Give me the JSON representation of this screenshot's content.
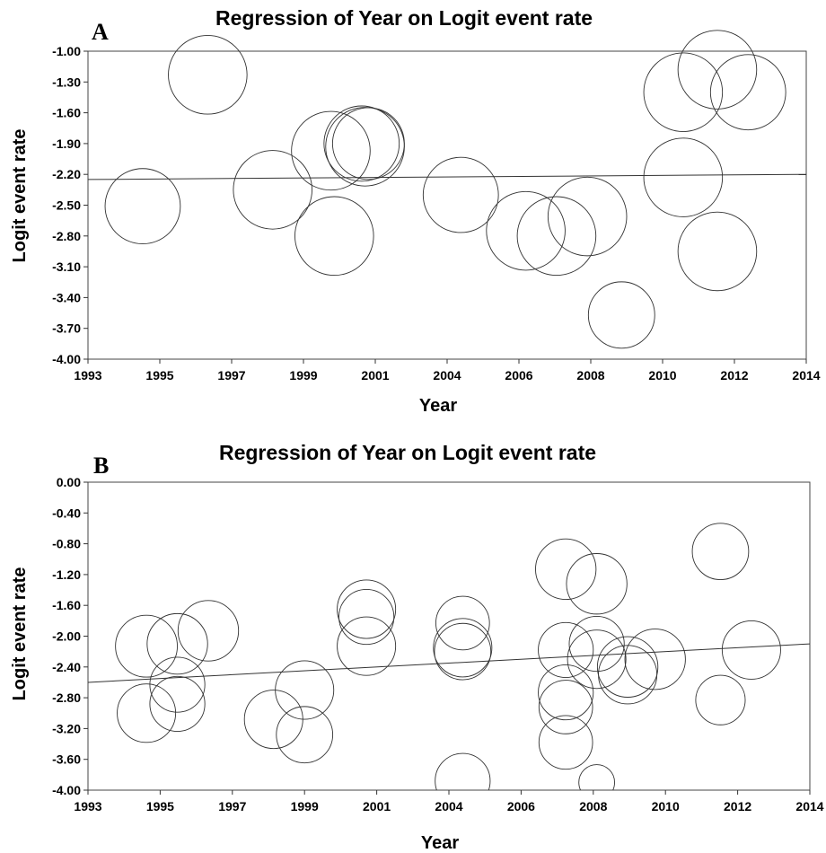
{
  "chart_data": [
    {
      "type": "scatter",
      "panel": "A",
      "title": "Regression of Year on Logit event rate",
      "xlabel": "Year",
      "ylabel": "Logit event rate",
      "xlim": [
        1993,
        2014
      ],
      "ylim": [
        -4.0,
        -1.0
      ],
      "xticks": [
        "1993",
        "1995",
        "1997",
        "1999",
        "2001",
        "2004",
        "2006",
        "2008",
        "2010",
        "2012",
        "2014"
      ],
      "yticks": [
        "-1.00",
        "-1.30",
        "-1.60",
        "-1.90",
        "-2.20",
        "-2.50",
        "-2.80",
        "-3.10",
        "-3.40",
        "-3.70",
        "-4.00"
      ],
      "regression_line": {
        "x": [
          1993,
          2014
        ],
        "y": [
          -2.25,
          -2.2
        ]
      },
      "points": [
        {
          "x": 1994.6,
          "y": -2.51,
          "r": 1.1
        },
        {
          "x": 1996.5,
          "y": -1.23,
          "r": 1.15
        },
        {
          "x": 1998.4,
          "y": -2.35,
          "r": 1.15
        },
        {
          "x": 2000.1,
          "y": -1.97,
          "r": 1.15
        },
        {
          "x": 2000.2,
          "y": -2.8,
          "r": 1.15
        },
        {
          "x": 2001.0,
          "y": -1.9,
          "r": 1.1
        },
        {
          "x": 2001.1,
          "y": -1.93,
          "r": 1.15
        },
        {
          "x": 2001.2,
          "y": -1.9,
          "r": 1.05
        },
        {
          "x": 2003.9,
          "y": -2.4,
          "r": 1.1
        },
        {
          "x": 2005.8,
          "y": -2.75,
          "r": 1.15
        },
        {
          "x": 2006.7,
          "y": -2.8,
          "r": 1.15
        },
        {
          "x": 2007.6,
          "y": -2.61,
          "r": 1.15
        },
        {
          "x": 2008.6,
          "y": -3.57,
          "r": 0.97
        },
        {
          "x": 2010.4,
          "y": -1.4,
          "r": 1.15
        },
        {
          "x": 2010.4,
          "y": -2.23,
          "r": 1.15
        },
        {
          "x": 2011.4,
          "y": -1.18,
          "r": 1.15
        },
        {
          "x": 2011.4,
          "y": -2.95,
          "r": 1.15
        },
        {
          "x": 2012.3,
          "y": -1.4,
          "r": 1.1
        }
      ]
    },
    {
      "type": "scatter",
      "panel": "B",
      "title": "Regression of Year on Logit event rate",
      "xlabel": "Year",
      "ylabel": "Logit event rate",
      "xlim": [
        1993,
        2014
      ],
      "ylim": [
        -4.0,
        0.0
      ],
      "xticks": [
        "1993",
        "1995",
        "1997",
        "1999",
        "2001",
        "2004",
        "2006",
        "2008",
        "2010",
        "2012",
        "2014"
      ],
      "yticks": [
        "0.00",
        "-0.40",
        "-0.80",
        "-1.20",
        "-1.60",
        "-2.00",
        "-2.40",
        "-2.80",
        "-3.20",
        "-3.60",
        "-4.00"
      ],
      "regression_line": {
        "x": [
          1993,
          2014
        ],
        "y": [
          -2.6,
          -2.1
        ]
      },
      "points": [
        {
          "x": 1994.7,
          "y": -2.13,
          "r": 0.9
        },
        {
          "x": 1994.7,
          "y": -3.0,
          "r": 0.85
        },
        {
          "x": 1995.6,
          "y": -2.1,
          "r": 0.88
        },
        {
          "x": 1995.6,
          "y": -2.63,
          "r": 0.8
        },
        {
          "x": 1995.6,
          "y": -2.88,
          "r": 0.8
        },
        {
          "x": 1996.5,
          "y": -1.93,
          "r": 0.88
        },
        {
          "x": 1998.4,
          "y": -3.08,
          "r": 0.85
        },
        {
          "x": 1999.3,
          "y": -2.7,
          "r": 0.85
        },
        {
          "x": 1999.3,
          "y": -3.28,
          "r": 0.82
        },
        {
          "x": 2001.1,
          "y": -1.65,
          "r": 0.85
        },
        {
          "x": 2001.1,
          "y": -1.75,
          "r": 0.8
        },
        {
          "x": 2001.1,
          "y": -2.13,
          "r": 0.85
        },
        {
          "x": 2003.9,
          "y": -1.83,
          "r": 0.78
        },
        {
          "x": 2003.9,
          "y": -2.15,
          "r": 0.85
        },
        {
          "x": 2003.9,
          "y": -2.2,
          "r": 0.82
        },
        {
          "x": 2003.9,
          "y": -3.88,
          "r": 0.8
        },
        {
          "x": 2006.9,
          "y": -1.13,
          "r": 0.88
        },
        {
          "x": 2006.9,
          "y": -2.18,
          "r": 0.8
        },
        {
          "x": 2006.9,
          "y": -2.73,
          "r": 0.8
        },
        {
          "x": 2006.9,
          "y": -2.92,
          "r": 0.78
        },
        {
          "x": 2006.9,
          "y": -3.38,
          "r": 0.78
        },
        {
          "x": 2007.8,
          "y": -1.32,
          "r": 0.88
        },
        {
          "x": 2007.8,
          "y": -2.1,
          "r": 0.8
        },
        {
          "x": 2007.8,
          "y": -2.3,
          "r": 0.85
        },
        {
          "x": 2007.8,
          "y": -3.9,
          "r": 0.52
        },
        {
          "x": 2008.7,
          "y": -2.4,
          "r": 0.88
        },
        {
          "x": 2008.7,
          "y": -2.5,
          "r": 0.85
        },
        {
          "x": 2009.5,
          "y": -2.3,
          "r": 0.88
        },
        {
          "x": 2011.4,
          "y": -0.9,
          "r": 0.82
        },
        {
          "x": 2011.4,
          "y": -2.83,
          "r": 0.72
        },
        {
          "x": 2012.3,
          "y": -2.18,
          "r": 0.85
        }
      ]
    }
  ]
}
